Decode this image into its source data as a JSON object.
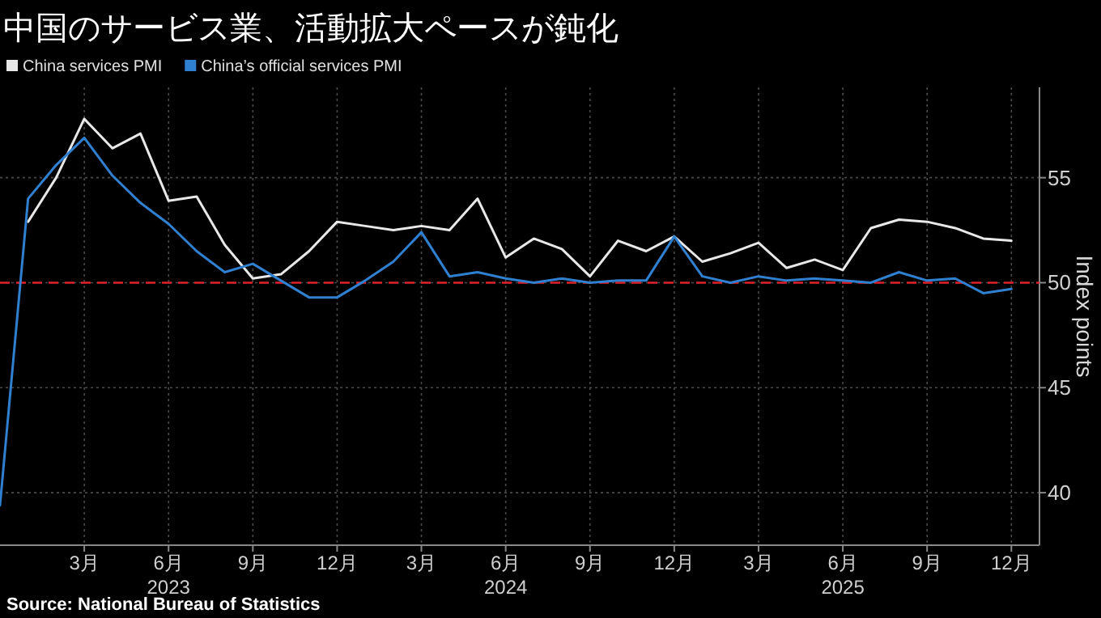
{
  "chart_data": {
    "type": "line",
    "title": "中国のサービス業、活動拡大ペースが鈍化",
    "ylabel": "Index points",
    "x": [
      "2022-12",
      "2023-01",
      "2023-02",
      "2023-03",
      "2023-04",
      "2023-05",
      "2023-06",
      "2023-07",
      "2023-08",
      "2023-09",
      "2023-10",
      "2023-11",
      "2023-12",
      "2024-01",
      "2024-02",
      "2024-03",
      "2024-04",
      "2024-05",
      "2024-06",
      "2024-07",
      "2024-08",
      "2024-09",
      "2024-10",
      "2024-11",
      "2024-12",
      "2025-01",
      "2025-02",
      "2025-03",
      "2025-04",
      "2025-05",
      "2025-06",
      "2025-07",
      "2025-08",
      "2025-09",
      "2025-10",
      "2025-11",
      "2025-12"
    ],
    "series": [
      {
        "name": "China services PMI",
        "color": "#e8e8e8",
        "values": [
          null,
          52.9,
          55.0,
          57.8,
          56.4,
          57.1,
          53.9,
          54.1,
          51.8,
          50.2,
          50.4,
          51.5,
          52.9,
          52.7,
          52.5,
          52.7,
          52.5,
          54.0,
          51.2,
          52.1,
          51.6,
          50.3,
          52.0,
          51.5,
          52.2,
          51.0,
          51.4,
          51.9,
          50.7,
          51.1,
          50.6,
          52.6,
          53.0,
          52.9,
          52.6,
          52.1,
          52.0
        ]
      },
      {
        "name": "China’s official services PMI",
        "color": "#2f80d0",
        "values": [
          39.4,
          54.0,
          55.6,
          56.9,
          55.1,
          53.8,
          52.8,
          51.5,
          50.5,
          50.9,
          50.1,
          49.3,
          49.3,
          50.1,
          51.0,
          52.4,
          50.3,
          50.5,
          50.2,
          50.0,
          50.2,
          50.0,
          50.1,
          50.1,
          52.2,
          50.3,
          50.0,
          50.3,
          50.1,
          50.2,
          50.1,
          50.0,
          50.5,
          50.1,
          50.2,
          49.5,
          49.7
        ]
      }
    ],
    "xlim": [
      "2022-12",
      "2026-01"
    ],
    "xticks": [
      {
        "value": "2023-03",
        "label": "3月"
      },
      {
        "value": "2023-06",
        "label": "6月\n2023"
      },
      {
        "value": "2023-09",
        "label": "9月"
      },
      {
        "value": "2023-12",
        "label": "12月"
      },
      {
        "value": "2024-03",
        "label": "3月"
      },
      {
        "value": "2024-06",
        "label": "6月\n2024"
      },
      {
        "value": "2024-09",
        "label": "9月"
      },
      {
        "value": "2024-12",
        "label": "12月"
      },
      {
        "value": "2025-03",
        "label": "3月"
      },
      {
        "value": "2025-06",
        "label": "6月\n2025"
      },
      {
        "value": "2025-09",
        "label": "9月"
      },
      {
        "value": "2025-12",
        "label": "12月"
      }
    ],
    "ylim": [
      37.5,
      59.3
    ],
    "yticks": [
      40,
      45,
      50,
      55
    ],
    "grid": true,
    "legend": "top left",
    "ref_lines": [
      {
        "axis": "y",
        "value": 50,
        "color": "#e0202a",
        "line_style": "dashed"
      }
    ],
    "annotations": [
      "Source: National Bureau of Statistics"
    ]
  }
}
